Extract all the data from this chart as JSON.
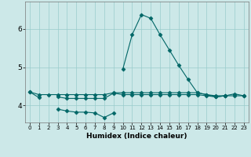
{
  "x": [
    0,
    1,
    2,
    3,
    4,
    5,
    6,
    7,
    8,
    9,
    10,
    11,
    12,
    13,
    14,
    15,
    16,
    17,
    18,
    19,
    20,
    21,
    22,
    23
  ],
  "lines": [
    [
      4.35,
      4.2,
      null,
      null,
      null,
      null,
      null,
      null,
      null,
      null,
      null,
      null,
      null,
      null,
      null,
      null,
      null,
      null,
      null,
      null,
      null,
      null,
      null,
      null
    ],
    [
      null,
      null,
      null,
      4.22,
      4.18,
      4.18,
      4.18,
      4.18,
      4.18,
      4.32,
      4.28,
      4.28,
      4.28,
      4.28,
      4.28,
      4.28,
      4.28,
      4.28,
      4.28,
      4.25,
      4.22,
      4.25,
      null,
      null
    ],
    [
      null,
      null,
      null,
      3.9,
      3.85,
      3.82,
      3.82,
      3.8,
      3.68,
      3.8,
      null,
      null,
      null,
      null,
      null,
      null,
      null,
      null,
      null,
      null,
      null,
      null,
      null,
      null
    ],
    [
      4.35,
      4.28,
      4.28,
      4.28,
      4.28,
      4.28,
      4.28,
      4.28,
      4.28,
      4.33,
      4.33,
      4.33,
      4.33,
      4.33,
      4.33,
      4.33,
      4.33,
      4.33,
      4.33,
      4.28,
      4.25,
      4.25,
      4.25,
      4.25
    ],
    [
      null,
      null,
      null,
      null,
      null,
      null,
      null,
      null,
      null,
      null,
      4.95,
      5.85,
      6.38,
      6.28,
      5.85,
      5.45,
      5.05,
      4.68,
      4.33,
      4.28,
      4.22,
      4.25,
      4.3,
      4.25
    ]
  ],
  "line_color": "#006666",
  "bg_color": "#cce8e8",
  "grid_color": "#99cccc",
  "xlabel": "Humidex (Indice chaleur)",
  "xlim": [
    -0.5,
    23.5
  ],
  "ylim": [
    3.55,
    6.72
  ],
  "yticks": [
    4,
    5,
    6
  ],
  "xticks": [
    0,
    1,
    2,
    3,
    4,
    5,
    6,
    7,
    8,
    9,
    10,
    11,
    12,
    13,
    14,
    15,
    16,
    17,
    18,
    19,
    20,
    21,
    22,
    23
  ],
  "marker": "D",
  "markersize": 2.5,
  "linewidth": 0.8
}
